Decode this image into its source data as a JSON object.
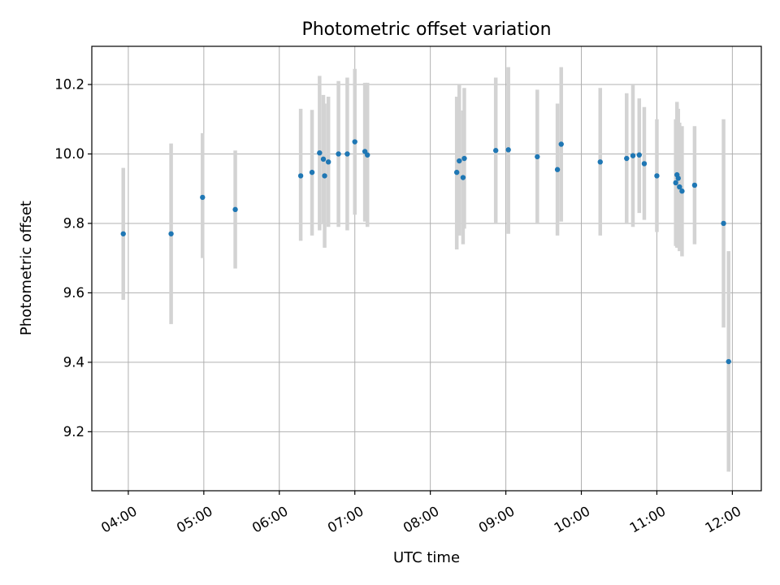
{
  "chart_data": {
    "type": "scatter",
    "title": "Photometric offset variation",
    "xlabel": "UTC time",
    "ylabel": "Photometric offset",
    "grid": true,
    "x_ticks": [
      "04:00",
      "05:00",
      "06:00",
      "07:00",
      "08:00",
      "09:00",
      "10:00",
      "11:00",
      "12:00"
    ],
    "y_ticks": [
      9.2,
      9.4,
      9.6,
      9.8,
      10.0,
      10.2
    ],
    "xlim": [
      "03:31",
      "12:23"
    ],
    "ylim": [
      9.03,
      10.31
    ],
    "colors": {
      "point": "#1f77b4",
      "errorbar": "#d3d3d3"
    },
    "points": [
      {
        "t": "03:56",
        "y": 9.77,
        "lo": 9.58,
        "hi": 9.96
      },
      {
        "t": "04:34",
        "y": 9.77,
        "lo": 9.51,
        "hi": 10.03
      },
      {
        "t": "04:59",
        "y": 9.875,
        "lo": 9.7,
        "hi": 10.06
      },
      {
        "t": "05:25",
        "y": 9.84,
        "lo": 9.67,
        "hi": 10.01
      },
      {
        "t": "06:17",
        "y": 9.937,
        "lo": 9.75,
        "hi": 10.13
      },
      {
        "t": "06:26",
        "y": 9.947,
        "lo": 9.765,
        "hi": 10.127
      },
      {
        "t": "06:32",
        "y": 10.003,
        "lo": 9.78,
        "hi": 10.225
      },
      {
        "t": "06:35",
        "y": 9.985,
        "lo": 9.8,
        "hi": 10.17
      },
      {
        "t": "06:36",
        "y": 9.937,
        "lo": 9.73,
        "hi": 10.145
      },
      {
        "t": "06:39",
        "y": 9.977,
        "lo": 9.79,
        "hi": 10.165
      },
      {
        "t": "06:47",
        "y": 10.0,
        "lo": 9.79,
        "hi": 10.21
      },
      {
        "t": "06:54",
        "y": 10.0,
        "lo": 9.78,
        "hi": 10.22
      },
      {
        "t": "07:00",
        "y": 10.035,
        "lo": 9.825,
        "hi": 10.245
      },
      {
        "t": "07:08",
        "y": 10.007,
        "lo": 9.805,
        "hi": 10.205
      },
      {
        "t": "07:10",
        "y": 9.997,
        "lo": 9.79,
        "hi": 10.205
      },
      {
        "t": "08:21",
        "y": 9.947,
        "lo": 9.725,
        "hi": 10.165
      },
      {
        "t": "08:23",
        "y": 9.98,
        "lo": 9.765,
        "hi": 10.2
      },
      {
        "t": "08:26",
        "y": 9.932,
        "lo": 9.74,
        "hi": 10.125
      },
      {
        "t": "08:27",
        "y": 9.987,
        "lo": 9.785,
        "hi": 10.19
      },
      {
        "t": "08:52",
        "y": 10.01,
        "lo": 9.8,
        "hi": 10.22
      },
      {
        "t": "09:02",
        "y": 10.012,
        "lo": 9.77,
        "hi": 10.25
      },
      {
        "t": "09:25",
        "y": 9.992,
        "lo": 9.8,
        "hi": 10.185
      },
      {
        "t": "09:41",
        "y": 9.955,
        "lo": 9.765,
        "hi": 10.145
      },
      {
        "t": "09:44",
        "y": 10.028,
        "lo": 9.805,
        "hi": 10.25
      },
      {
        "t": "10:15",
        "y": 9.977,
        "lo": 9.765,
        "hi": 10.19
      },
      {
        "t": "10:36",
        "y": 9.987,
        "lo": 9.8,
        "hi": 10.175
      },
      {
        "t": "10:41",
        "y": 9.995,
        "lo": 9.79,
        "hi": 10.2
      },
      {
        "t": "10:46",
        "y": 9.997,
        "lo": 9.83,
        "hi": 10.16
      },
      {
        "t": "10:50",
        "y": 9.972,
        "lo": 9.81,
        "hi": 10.135
      },
      {
        "t": "11:00",
        "y": 9.937,
        "lo": 9.775,
        "hi": 10.1
      },
      {
        "t": "11:15",
        "y": 9.917,
        "lo": 9.735,
        "hi": 10.1
      },
      {
        "t": "11:16",
        "y": 9.94,
        "lo": 9.73,
        "hi": 10.15
      },
      {
        "t": "11:17",
        "y": 9.93,
        "lo": 9.73,
        "hi": 10.13
      },
      {
        "t": "11:18",
        "y": 9.905,
        "lo": 9.72,
        "hi": 10.09
      },
      {
        "t": "11:20",
        "y": 9.893,
        "lo": 9.705,
        "hi": 10.08
      },
      {
        "t": "11:30",
        "y": 9.91,
        "lo": 9.74,
        "hi": 10.08
      },
      {
        "t": "11:53",
        "y": 9.8,
        "lo": 9.5,
        "hi": 10.1
      },
      {
        "t": "11:57",
        "y": 9.402,
        "lo": 9.085,
        "hi": 9.72
      }
    ]
  }
}
